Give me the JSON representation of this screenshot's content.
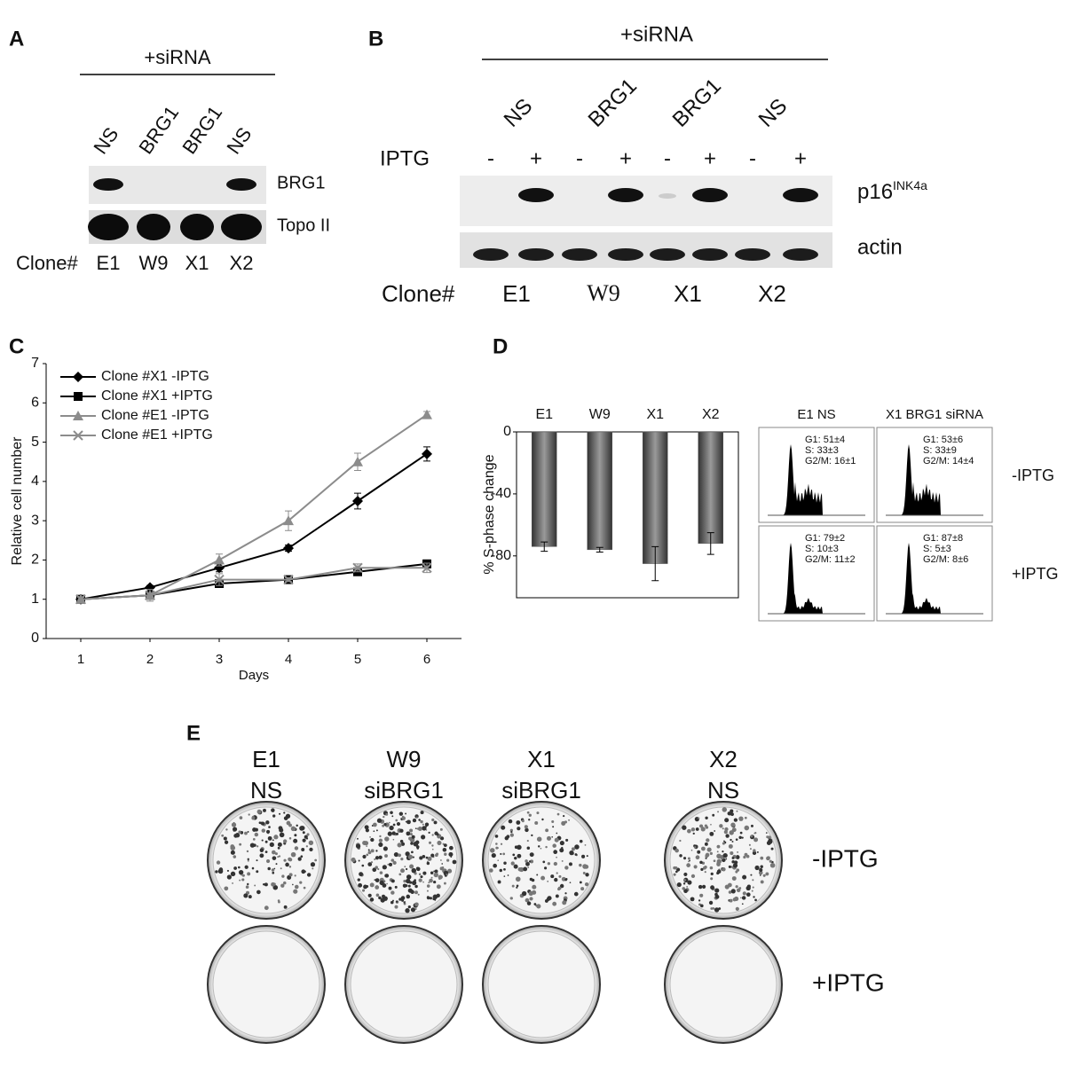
{
  "panels": {
    "A": {
      "letter": "A",
      "treatment": "+siRNA",
      "lanes": [
        "NS",
        "BRG1",
        "BRG1",
        "NS"
      ],
      "blots": [
        "BRG1",
        "Topo II"
      ],
      "clone_label": "Clone#",
      "clones": [
        "E1",
        "W9",
        "X1",
        "X2"
      ]
    },
    "B": {
      "letter": "B",
      "treatment": "+siRNA",
      "lanes": [
        "NS",
        "BRG1",
        "BRG1",
        "NS"
      ],
      "iptg_label": "IPTG",
      "iptg": [
        "-",
        "+",
        "-",
        "+",
        "-",
        "+",
        "-",
        "+"
      ],
      "blots": [
        {
          "name": "p16",
          "superscript": "INK4a"
        },
        {
          "name": "actin"
        }
      ],
      "clone_label": "Clone#",
      "clones": [
        "E1",
        "W9",
        "X1",
        "X2"
      ]
    },
    "C": {
      "letter": "C"
    },
    "D": {
      "letter": "D",
      "flow": {
        "columns": [
          "E1 NS",
          "X1 BRG1 siRNA"
        ],
        "rows": [
          "-IPTG",
          "+IPTG"
        ],
        "stats": [
          [
            [
              "G1: 51±4",
              "S: 33±3",
              "G2/M: 16±1"
            ],
            [
              "G1: 53±6",
              "S: 33±9",
              "G2/M: 14±4"
            ]
          ],
          [
            [
              "G1: 79±2",
              "S: 10±3",
              "G2/M: 11±2"
            ],
            [
              "G1: 87±8",
              "S: 5±3",
              "G2/M: 8±6"
            ]
          ]
        ]
      }
    },
    "E": {
      "letter": "E",
      "columns": [
        {
          "clone": "E1",
          "treatment": "NS"
        },
        {
          "clone": "W9",
          "treatment": "siBRG1"
        },
        {
          "clone": "X1",
          "treatment": "siBRG1"
        },
        {
          "clone": "X2",
          "treatment": "NS"
        }
      ],
      "rows": [
        "-IPTG",
        "+IPTG"
      ]
    }
  },
  "chart_data": [
    {
      "type": "line",
      "xlabel": "Days",
      "ylabel": "Relative cell number",
      "x": [
        1,
        2,
        3,
        4,
        5,
        6
      ],
      "xlim": [
        0.5,
        6.5
      ],
      "xticks": [
        1,
        2,
        3,
        4,
        5,
        6
      ],
      "ylim": [
        0,
        7
      ],
      "yticks": [
        0,
        1,
        2,
        3,
        4,
        5,
        6,
        7
      ],
      "series": [
        {
          "name": "Clone #X1 -IPTG",
          "color": "#000000",
          "marker": "diamond",
          "values": [
            1,
            1.3,
            1.8,
            2.3,
            3.5,
            4.7
          ],
          "errors": [
            0.05,
            0.05,
            0.1,
            0.08,
            0.2,
            0.18
          ]
        },
        {
          "name": "Clone #X1 +IPTG",
          "color": "#000000",
          "marker": "square",
          "values": [
            1,
            1.1,
            1.4,
            1.5,
            1.7,
            1.9
          ],
          "errors": [
            0.05,
            0.05,
            0.08,
            0.05,
            0.08,
            0.1
          ]
        },
        {
          "name": "Clone #E1 -IPTG",
          "color": "#8c8c8c",
          "marker": "triangle",
          "values": [
            1,
            1.1,
            2,
            3,
            4.5,
            5.7
          ],
          "errors": [
            0.05,
            0.05,
            0.15,
            0.25,
            0.22,
            0.08
          ]
        },
        {
          "name": "Clone #E1 +IPTG",
          "color": "#8c8c8c",
          "marker": "x",
          "values": [
            1,
            1.1,
            1.5,
            1.5,
            1.8,
            1.8
          ],
          "errors": [
            0.05,
            0.15,
            0.15,
            0.05,
            0.1,
            0.12
          ]
        }
      ]
    },
    {
      "type": "bar",
      "ylabel": "% S-phase change",
      "categories": [
        "E1",
        "W9",
        "X1",
        "X2"
      ],
      "values": [
        -74,
        -76,
        -85,
        -72
      ],
      "errors": [
        3,
        1.5,
        11,
        7
      ],
      "color": "#5a5a5a",
      "ylim": [
        -107,
        0
      ],
      "yticks": [
        0,
        -40,
        -80
      ]
    }
  ]
}
